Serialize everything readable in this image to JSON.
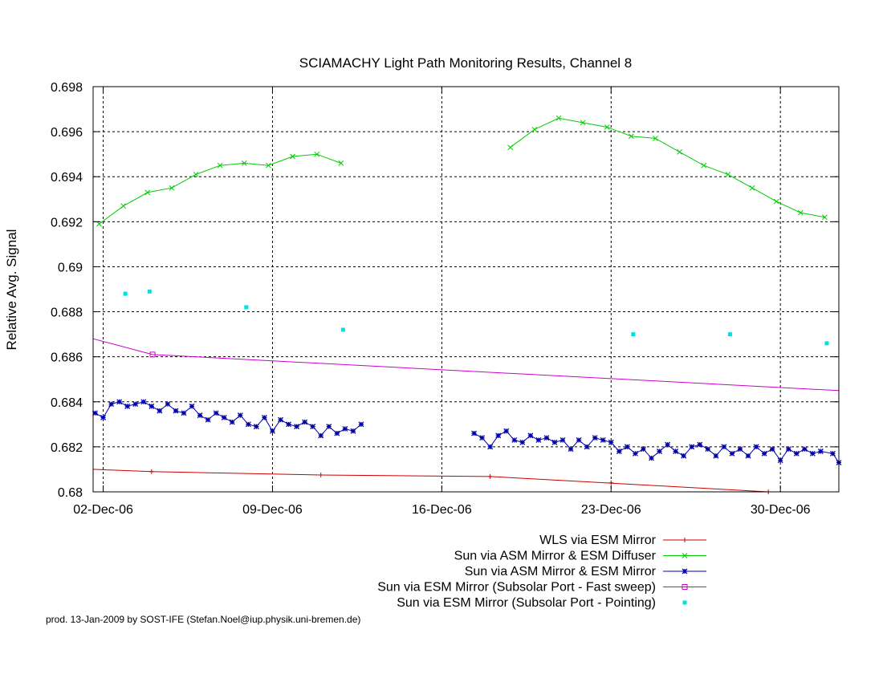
{
  "chart_data": {
    "type": "line",
    "title": "SCIAMACHY Light Path Monitoring Results, Channel 8",
    "xlabel": "",
    "ylabel": "Relative Avg. Signal",
    "xlim": [
      "2006-12-01T14:00",
      "2007-01-01T10:00"
    ],
    "ylim": [
      0.68,
      0.698
    ],
    "x_ticks": [
      {
        "date": "2006-12-02",
        "label": "02-Dec-06"
      },
      {
        "date": "2006-12-09",
        "label": "09-Dec-06"
      },
      {
        "date": "2006-12-16",
        "label": "16-Dec-06"
      },
      {
        "date": "2006-12-23",
        "label": "23-Dec-06"
      },
      {
        "date": "2006-12-30",
        "label": "30-Dec-06"
      }
    ],
    "y_ticks": [
      {
        "value": 0.68,
        "label": "0.68"
      },
      {
        "value": 0.682,
        "label": "0.682"
      },
      {
        "value": 0.684,
        "label": "0.684"
      },
      {
        "value": 0.686,
        "label": "0.686"
      },
      {
        "value": 0.688,
        "label": "0.688"
      },
      {
        "value": 0.69,
        "label": "0.69"
      },
      {
        "value": 0.692,
        "label": "0.692"
      },
      {
        "value": 0.694,
        "label": "0.694"
      },
      {
        "value": 0.696,
        "label": "0.696"
      },
      {
        "value": 0.698,
        "label": "0.698"
      }
    ],
    "grid": "dashed-black",
    "legend_position": "bottom-right",
    "series": [
      {
        "name": "WLS via ESM Mirror",
        "color": "#cc0000",
        "marker": "plus",
        "style": "line",
        "points": [
          [
            "2006-12-01T14:00",
            0.681
          ],
          [
            "2006-12-04T00:00",
            0.6809
          ],
          [
            "2006-12-11T00:00",
            0.68075
          ],
          [
            "2006-12-18T00:00",
            0.68068
          ],
          [
            "2006-12-29T12:00",
            0.68
          ],
          [
            "2006-12-30T00:00",
            0.68
          ]
        ],
        "marker_points": [
          [
            "2006-12-04T00:00",
            0.6809
          ],
          [
            "2006-12-11T00:00",
            0.68075
          ],
          [
            "2006-12-18T00:00",
            0.68068
          ],
          [
            "2006-12-23T00:00",
            0.6804
          ],
          [
            "2006-12-29T12:00",
            0.68
          ]
        ]
      },
      {
        "name": "Sun via ASM Mirror & ESM Diffuser",
        "color": "#00cc00",
        "marker": "cross",
        "style": "linespoints",
        "segments": [
          [
            [
              "2006-12-01T20:00",
              0.6919
            ],
            [
              "2006-12-02T20:00",
              0.6927
            ],
            [
              "2006-12-03T20:00",
              0.6933
            ],
            [
              "2006-12-04T20:00",
              0.6935
            ],
            [
              "2006-12-05T20:00",
              0.6941
            ],
            [
              "2006-12-06T20:00",
              0.6945
            ],
            [
              "2006-12-07T20:00",
              0.6946
            ],
            [
              "2006-12-08T20:00",
              0.6945
            ],
            [
              "2006-12-09T20:00",
              0.6949
            ],
            [
              "2006-12-10T20:00",
              0.695
            ],
            [
              "2006-12-11T20:00",
              0.6946
            ]
          ],
          [
            [
              "2006-12-18T20:00",
              0.6953
            ],
            [
              "2006-12-19T20:00",
              0.6961
            ],
            [
              "2006-12-20T20:00",
              0.6966
            ],
            [
              "2006-12-21T20:00",
              0.6964
            ],
            [
              "2006-12-22T20:00",
              0.6962
            ],
            [
              "2006-12-23T20:00",
              0.6958
            ],
            [
              "2006-12-24T20:00",
              0.6957
            ],
            [
              "2006-12-25T20:00",
              0.6951
            ],
            [
              "2006-12-26T20:00",
              0.6945
            ],
            [
              "2006-12-27T20:00",
              0.6941
            ],
            [
              "2006-12-28T20:00",
              0.6935
            ],
            [
              "2006-12-29T20:00",
              0.6929
            ],
            [
              "2006-12-30T20:00",
              0.6924
            ],
            [
              "2006-12-31T20:00",
              0.6922
            ]
          ]
        ]
      },
      {
        "name": "Sun via ASM Mirror & ESM Mirror",
        "color": "#0000aa",
        "marker": "star",
        "style": "linespoints",
        "segments": [
          [
            [
              "2006-12-01T16:00",
              0.6835
            ],
            [
              "2006-12-02T00:00",
              0.6833
            ],
            [
              "2006-12-02T08:00",
              0.6839
            ],
            [
              "2006-12-02T16:00",
              0.684
            ],
            [
              "2006-12-03T00:00",
              0.6838
            ],
            [
              "2006-12-03T08:00",
              0.6839
            ],
            [
              "2006-12-03T16:00",
              0.684
            ],
            [
              "2006-12-04T00:00",
              0.6838
            ],
            [
              "2006-12-04T08:00",
              0.6836
            ],
            [
              "2006-12-04T16:00",
              0.6839
            ],
            [
              "2006-12-05T00:00",
              0.6836
            ],
            [
              "2006-12-05T08:00",
              0.6835
            ],
            [
              "2006-12-05T16:00",
              0.6838
            ],
            [
              "2006-12-06T00:00",
              0.6834
            ],
            [
              "2006-12-06T08:00",
              0.6832
            ],
            [
              "2006-12-06T16:00",
              0.6835
            ],
            [
              "2006-12-07T00:00",
              0.6833
            ],
            [
              "2006-12-07T08:00",
              0.6831
            ],
            [
              "2006-12-07T16:00",
              0.6834
            ],
            [
              "2006-12-08T00:00",
              0.683
            ],
            [
              "2006-12-08T08:00",
              0.6829
            ],
            [
              "2006-12-08T16:00",
              0.6833
            ],
            [
              "2006-12-09T00:00",
              0.6827
            ],
            [
              "2006-12-09T08:00",
              0.6832
            ],
            [
              "2006-12-09T16:00",
              0.683
            ],
            [
              "2006-12-10T00:00",
              0.6829
            ],
            [
              "2006-12-10T08:00",
              0.6831
            ],
            [
              "2006-12-10T16:00",
              0.6829
            ],
            [
              "2006-12-11T00:00",
              0.6825
            ],
            [
              "2006-12-11T08:00",
              0.6829
            ],
            [
              "2006-12-11T16:00",
              0.6826
            ],
            [
              "2006-12-12T00:00",
              0.6828
            ],
            [
              "2006-12-12T08:00",
              0.6827
            ],
            [
              "2006-12-12T16:00",
              0.683
            ]
          ],
          [
            [
              "2006-12-17T08:00",
              0.6826
            ],
            [
              "2006-12-17T16:00",
              0.6824
            ],
            [
              "2006-12-18T00:00",
              0.682
            ],
            [
              "2006-12-18T08:00",
              0.6825
            ],
            [
              "2006-12-18T16:00",
              0.6827
            ],
            [
              "2006-12-19T00:00",
              0.6823
            ],
            [
              "2006-12-19T08:00",
              0.6822
            ],
            [
              "2006-12-19T16:00",
              0.6825
            ],
            [
              "2006-12-20T00:00",
              0.6823
            ],
            [
              "2006-12-20T08:00",
              0.6824
            ],
            [
              "2006-12-20T16:00",
              0.6822
            ],
            [
              "2006-12-21T00:00",
              0.6823
            ],
            [
              "2006-12-21T08:00",
              0.6819
            ],
            [
              "2006-12-21T16:00",
              0.6823
            ],
            [
              "2006-12-22T00:00",
              0.682
            ],
            [
              "2006-12-22T08:00",
              0.6824
            ],
            [
              "2006-12-22T16:00",
              0.6823
            ],
            [
              "2006-12-23T00:00",
              0.6822
            ],
            [
              "2006-12-23T08:00",
              0.6818
            ],
            [
              "2006-12-23T16:00",
              0.682
            ],
            [
              "2006-12-24T00:00",
              0.6817
            ],
            [
              "2006-12-24T08:00",
              0.6819
            ],
            [
              "2006-12-24T16:00",
              0.6815
            ],
            [
              "2006-12-25T00:00",
              0.6818
            ],
            [
              "2006-12-25T08:00",
              0.6821
            ],
            [
              "2006-12-25T16:00",
              0.6818
            ],
            [
              "2006-12-26T00:00",
              0.6816
            ],
            [
              "2006-12-26T08:00",
              0.682
            ],
            [
              "2006-12-26T16:00",
              0.6821
            ],
            [
              "2006-12-27T00:00",
              0.6819
            ],
            [
              "2006-12-27T08:00",
              0.6816
            ],
            [
              "2006-12-27T16:00",
              0.682
            ],
            [
              "2006-12-28T00:00",
              0.6817
            ],
            [
              "2006-12-28T08:00",
              0.6819
            ],
            [
              "2006-12-28T16:00",
              0.6816
            ],
            [
              "2006-12-29T00:00",
              0.682
            ],
            [
              "2006-12-29T08:00",
              0.6817
            ],
            [
              "2006-12-29T16:00",
              0.6819
            ],
            [
              "2006-12-30T00:00",
              0.6814
            ],
            [
              "2006-12-30T08:00",
              0.6819
            ],
            [
              "2006-12-30T16:00",
              0.6817
            ],
            [
              "2006-12-31T00:00",
              0.6819
            ],
            [
              "2006-12-31T08:00",
              0.6817
            ],
            [
              "2006-12-31T16:00",
              0.6818
            ],
            [
              "2007-01-01T04:00",
              0.6817
            ],
            [
              "2007-01-01T10:00",
              0.6813
            ]
          ]
        ]
      },
      {
        "name": "Sun via ESM Mirror (Subsolar Port - Fast sweep)",
        "color": "#cc00cc",
        "marker": "square",
        "style": "line",
        "points": [
          [
            "2006-12-01T14:00",
            0.6868
          ],
          [
            "2006-12-04T01:00",
            0.6861
          ],
          [
            "2007-01-01T10:00",
            0.6845
          ]
        ],
        "marker_points": [
          [
            "2006-12-04T01:00",
            0.6861
          ]
        ]
      },
      {
        "name": "Sun via ESM Mirror (Subsolar Port - Pointing)",
        "color": "#00e0e0",
        "marker": "filled-square",
        "style": "points",
        "points": [
          [
            "2006-12-02T22:00",
            0.6888
          ],
          [
            "2006-12-03T22:00",
            0.6889
          ],
          [
            "2006-12-07T22:00",
            0.6882
          ],
          [
            "2006-12-11T22:00",
            0.6872
          ],
          [
            "2006-12-23T22:00",
            0.687
          ],
          [
            "2006-12-27T22:00",
            0.687
          ],
          [
            "2006-12-31T22:00",
            0.6866
          ]
        ]
      }
    ]
  },
  "footer": {
    "text": "prod. 13-Jan-2009 by SOST-IFE (Stefan.Noel@iup.physik.uni-bremen.de)"
  }
}
